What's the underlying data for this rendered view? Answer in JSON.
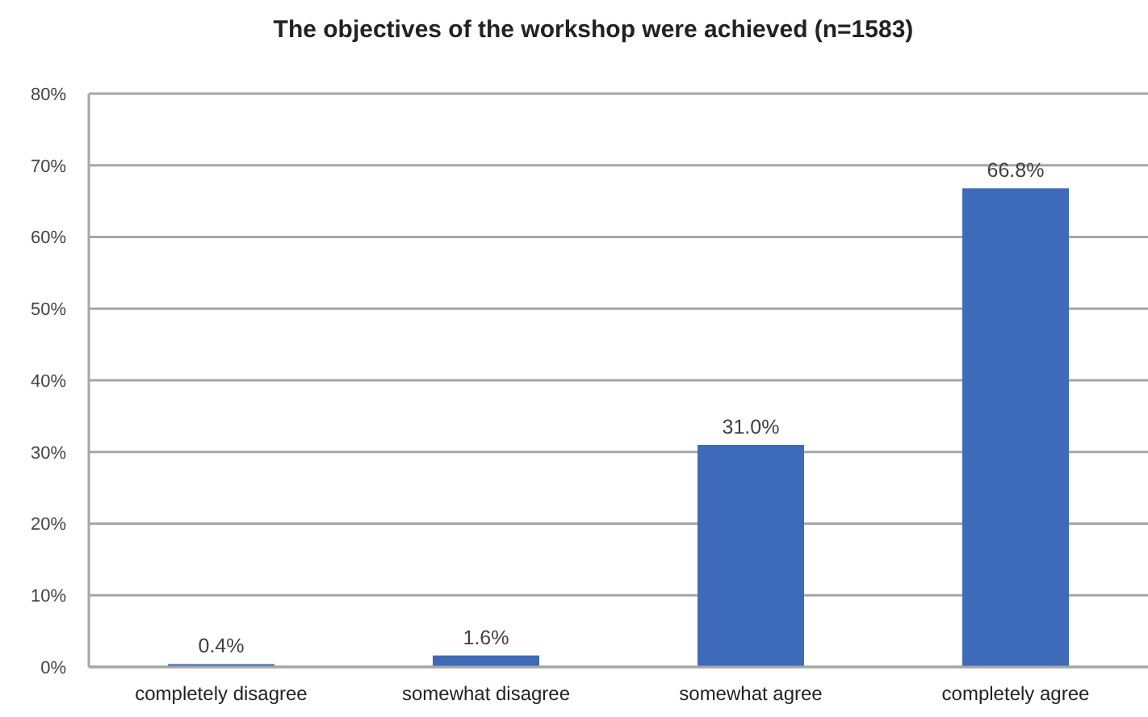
{
  "chart_data": {
    "type": "bar",
    "title": "The objectives of the workshop were achieved (n=1583)",
    "categories": [
      "completely disagree",
      "somewhat disagree",
      "somewhat agree",
      "completely agree"
    ],
    "values": [
      0.4,
      1.6,
      31.0,
      66.8
    ],
    "value_labels": [
      "0.4%",
      "1.6%",
      "31.0%",
      "66.8%"
    ],
    "color": "#3e6bb9",
    "ylim": [
      0,
      80
    ],
    "yticks": [
      {
        "value": 0,
        "label": "0%"
      },
      {
        "value": 10,
        "label": "10%"
      },
      {
        "value": 20,
        "label": "20%"
      },
      {
        "value": 30,
        "label": "30%"
      },
      {
        "value": 40,
        "label": "40%"
      },
      {
        "value": 50,
        "label": "50%"
      },
      {
        "value": 60,
        "label": "60%"
      },
      {
        "value": 70,
        "label": "70%"
      },
      {
        "value": 80,
        "label": "80%"
      }
    ],
    "grid": "y"
  }
}
